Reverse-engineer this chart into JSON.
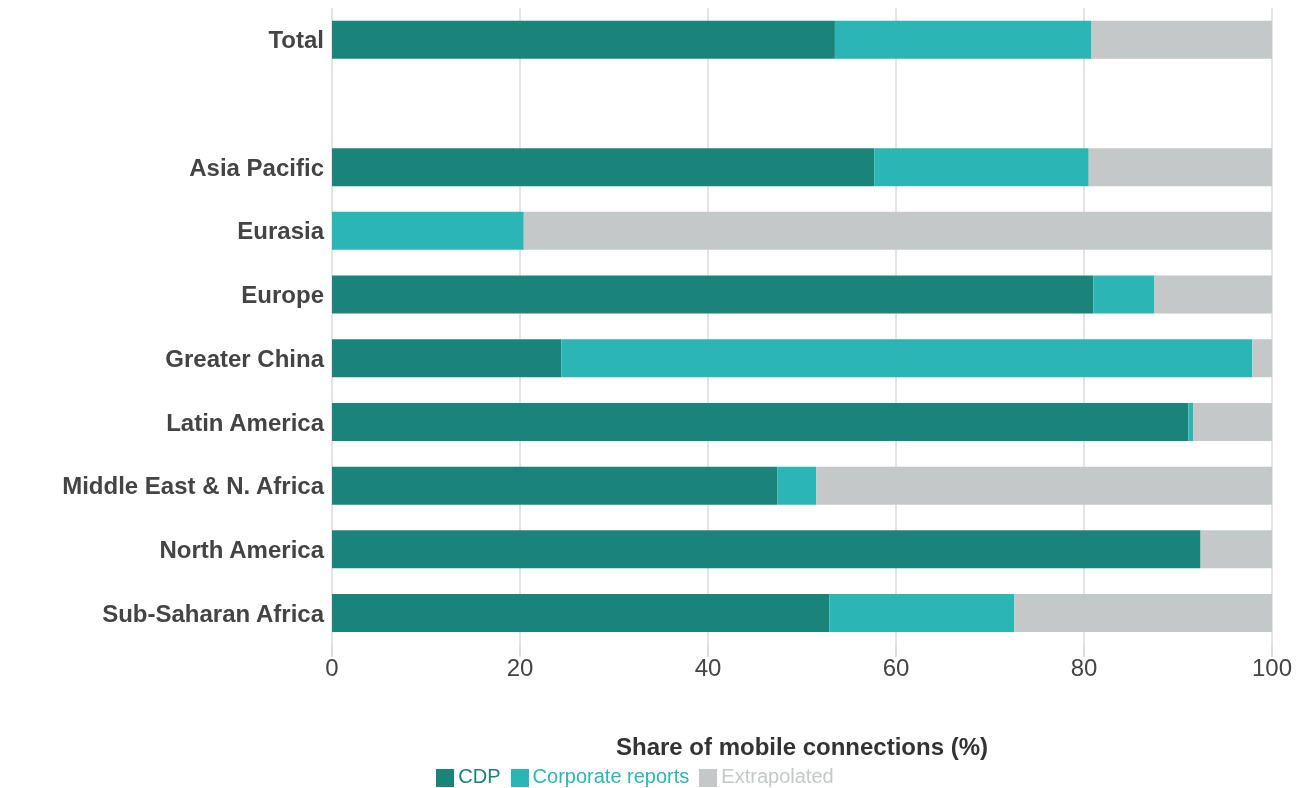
{
  "chart_data": {
    "type": "bar",
    "orientation": "horizontal",
    "stacked": true,
    "categories": [
      "Total",
      null,
      "Asia Pacific",
      "Eurasia",
      "Europe",
      "Greater China",
      "Latin America",
      "Middle East & N. Africa",
      "North America",
      "Sub-Saharan Africa"
    ],
    "series": [
      {
        "name": "CDP",
        "color": "#1a837a",
        "values": [
          53.5,
          null,
          57.7,
          0,
          81.0,
          24.4,
          91.1,
          47.4,
          92.4,
          52.9
        ]
      },
      {
        "name": "Corporate reports",
        "color": "#2bb5b5",
        "values": [
          27.3,
          null,
          22.8,
          20.4,
          6.5,
          73.5,
          0.5,
          4.1,
          0,
          19.7
        ]
      },
      {
        "name": "Extrapolated",
        "color": "#c4c8c8",
        "values": [
          19.2,
          null,
          19.5,
          79.6,
          12.5,
          2.1,
          8.4,
          48.5,
          7.6,
          27.4
        ]
      }
    ],
    "xlabel": "Share of mobile connections (%)",
    "xlim": [
      0,
      100
    ],
    "xticks": [
      0,
      20,
      40,
      60,
      80,
      100
    ],
    "grid": "x",
    "legend": "bottom"
  }
}
